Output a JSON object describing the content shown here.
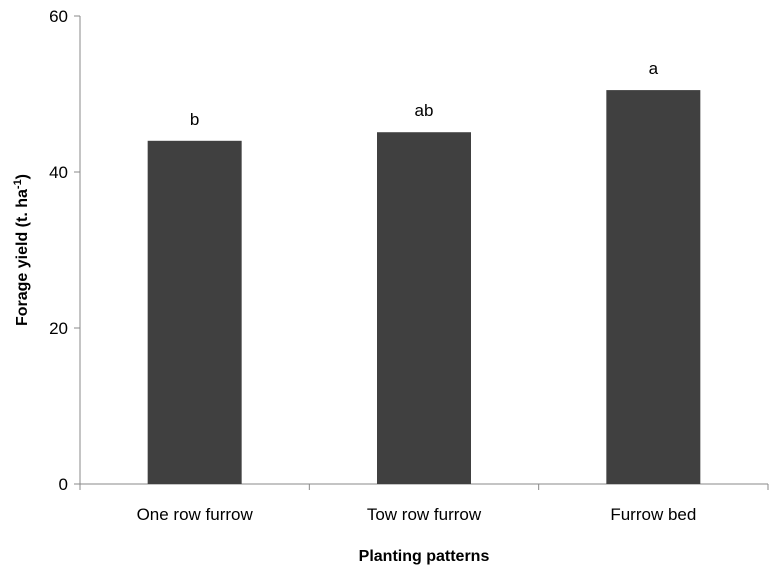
{
  "chart_data": {
    "type": "bar",
    "categories": [
      "One row furrow",
      "Tow row furrow",
      "Furrow bed"
    ],
    "values": [
      44,
      45.1,
      50.5
    ],
    "bar_annotations": [
      "b",
      "ab",
      "a"
    ],
    "xlabel": "Planting patterns",
    "ylabel_main": "Forage yield (t. ha",
    "ylabel_sup": "-1",
    "ylabel_close": ")",
    "ylim": [
      0,
      60
    ],
    "yticks": [
      "0",
      "20",
      "40",
      "60"
    ],
    "grid": false,
    "bar_color": "#404040"
  }
}
